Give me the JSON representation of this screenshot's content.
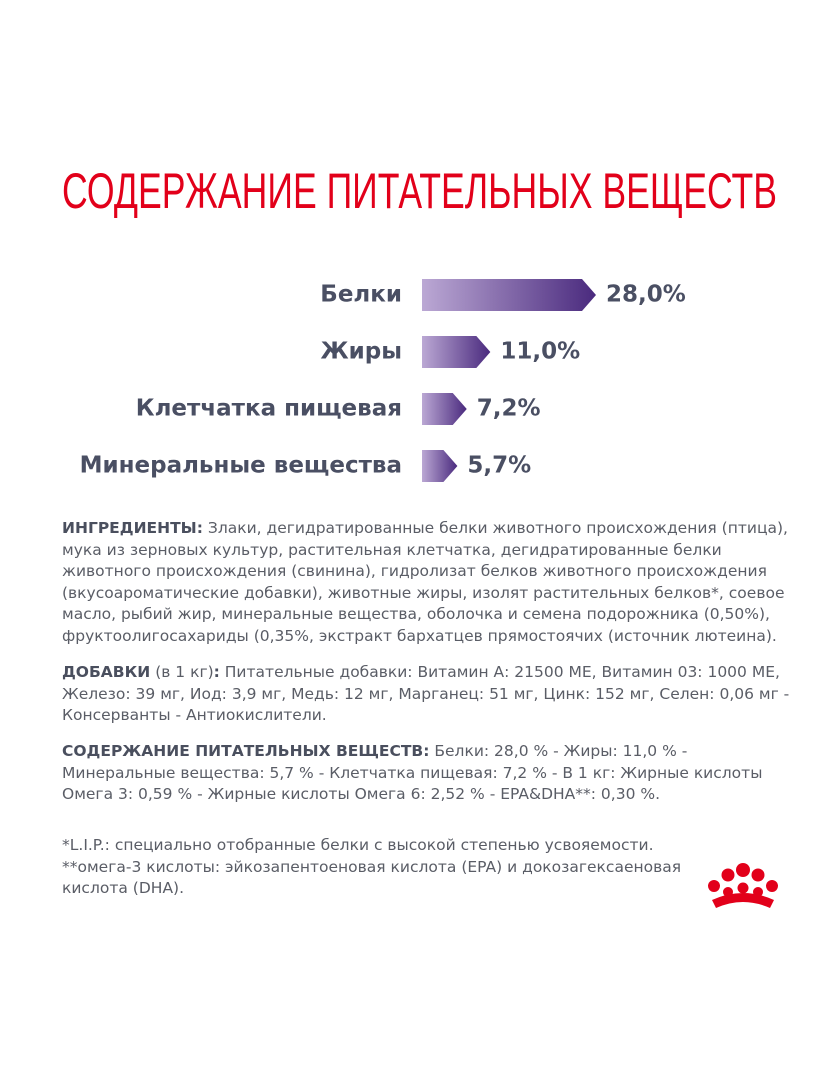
{
  "chart_data": {
    "type": "bar",
    "orientation": "horizontal",
    "title": "СОДЕРЖАНИЕ ПИТАТЕЛЬНЫХ ВЕЩЕСТВ",
    "categories": [
      "Белки",
      "Жиры",
      "Клетчатка пищевая",
      "Минеральные вещества"
    ],
    "values": [
      28.0,
      11.0,
      7.2,
      5.7
    ],
    "value_labels": [
      "28,0%",
      "11,0%",
      "7,2%",
      "5,7%"
    ],
    "gradient": [
      "#bba8d4",
      "#4a2a7e"
    ]
  },
  "ingredients": {
    "label": "ИНГРЕДИЕНТЫ:",
    "text": "Злаки, дегидратированные белки животного происхождения (птица), мука из зерновых культур, растительная клетчатка, дегидратированные белки животного происхождения (свинина), гидролизат белков животного происхождения (вкусоароматические добавки), животные жиры, изолят растительных белков*, соевое масло, рыбий жир, минеральные вещества, оболочка и семена подорожника (0,50%), фруктоолигосахариды (0,35%, экстракт бархатцев прямостоячих (источник лютеина)."
  },
  "additives": {
    "label": "ДОБАВКИ",
    "note": "(в 1 кг)",
    "colon": ":",
    "text": "Питательные добавки: Витамин А: 21500 МЕ, Витамин 03: 1000 МЕ, Железо: 39 мг, Иод: 3,9 мг, Медь: 12 мг, Марганец: 51 мг, Цинк: 152 мг, Селен: 0,06 мг - Консерванты - Антиокислители."
  },
  "nutrients": {
    "label": "СОДЕРЖАНИЕ ПИТАТЕЛЬНЫХ ВЕЩЕСТВ:",
    "text": "Белки: 28,0 % - Жиры: 11,0 % - Минеральные вещества: 5,7 % - Клетчатка пищевая: 7,2 % - В 1 кг: Жирные кислоты Омега 3: 0,59 % - Жирные кислоты Омега 6: 2,52 % - EPA&DHA**: 0,30 %."
  },
  "footnotes": [
    "*L.I.P.: специально отобранные белки с высокой степенью усвояемости.",
    "**омега-3 кислоты: эйкозапентоеновая кислота (EPA) и докозагексаеновая кислота (DHA)."
  ]
}
